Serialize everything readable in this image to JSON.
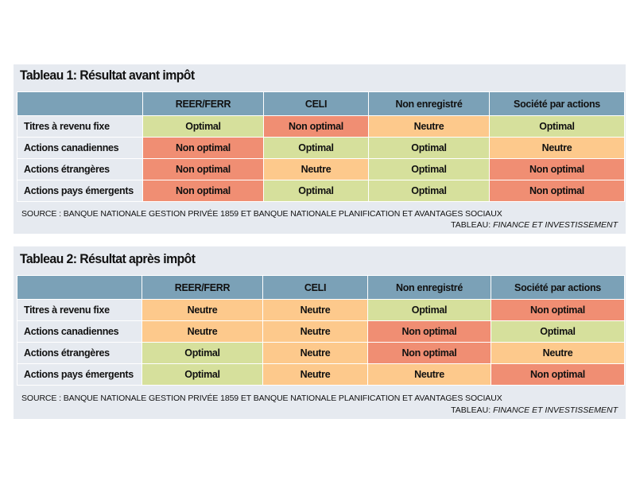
{
  "chart_data": [
    {
      "type": "table",
      "title": "Tableau 1: Résultat avant impôt",
      "columns": [
        "REER/FERR",
        "CELI",
        "Non enregistré",
        "Société par actions"
      ],
      "rows": [
        {
          "label": "Titres à revenu fixe",
          "values": [
            "Optimal",
            "Non optimal",
            "Neutre",
            "Optimal"
          ]
        },
        {
          "label": "Actions canadiennes",
          "values": [
            "Non optimal",
            "Optimal",
            "Optimal",
            "Neutre"
          ]
        },
        {
          "label": "Actions étrangères",
          "values": [
            "Non optimal",
            "Neutre",
            "Optimal",
            "Non optimal"
          ]
        },
        {
          "label": "Actions pays émergents",
          "values": [
            "Non optimal",
            "Optimal",
            "Optimal",
            "Non optimal"
          ]
        }
      ],
      "source": "SOURCE : BANQUE NATIONALE GESTION PRIVÉE 1859 ET BANQUE NATIONALE PLANIFICATION ET AVANTAGES SOCIAUX",
      "credit_prefix": "TABLEAU: ",
      "credit_name": "FINANCE ET INVESTISSEMENT"
    },
    {
      "type": "table",
      "title": "Tableau 2: Résultat après impôt",
      "columns": [
        "REER/FERR",
        "CELI",
        "Non enregistré",
        "Société par actions"
      ],
      "rows": [
        {
          "label": "Titres à revenu fixe",
          "values": [
            "Neutre",
            "Neutre",
            "Optimal",
            "Non optimal"
          ]
        },
        {
          "label": "Actions canadiennes",
          "values": [
            "Neutre",
            "Neutre",
            "Non optimal",
            "Optimal"
          ]
        },
        {
          "label": "Actions étrangères",
          "values": [
            "Optimal",
            "Neutre",
            "Non optimal",
            "Neutre"
          ]
        },
        {
          "label": "Actions pays émergents",
          "values": [
            "Optimal",
            "Neutre",
            "Neutre",
            "Non optimal"
          ]
        }
      ],
      "source": "SOURCE : BANQUE NATIONALE GESTION PRIVÉE 1859 ET BANQUE NATIONALE PLANIFICATION ET AVANTAGES SOCIAUX",
      "credit_prefix": "TABLEAU: ",
      "credit_name": "FINANCE ET INVESTISSEMENT"
    }
  ],
  "colors": {
    "header": "#7ba1b7",
    "panel": "#e6eaf0",
    "Optimal": "#d6e09c",
    "Neutre": "#fdc98c",
    "Non optimal": "#f08e73"
  }
}
